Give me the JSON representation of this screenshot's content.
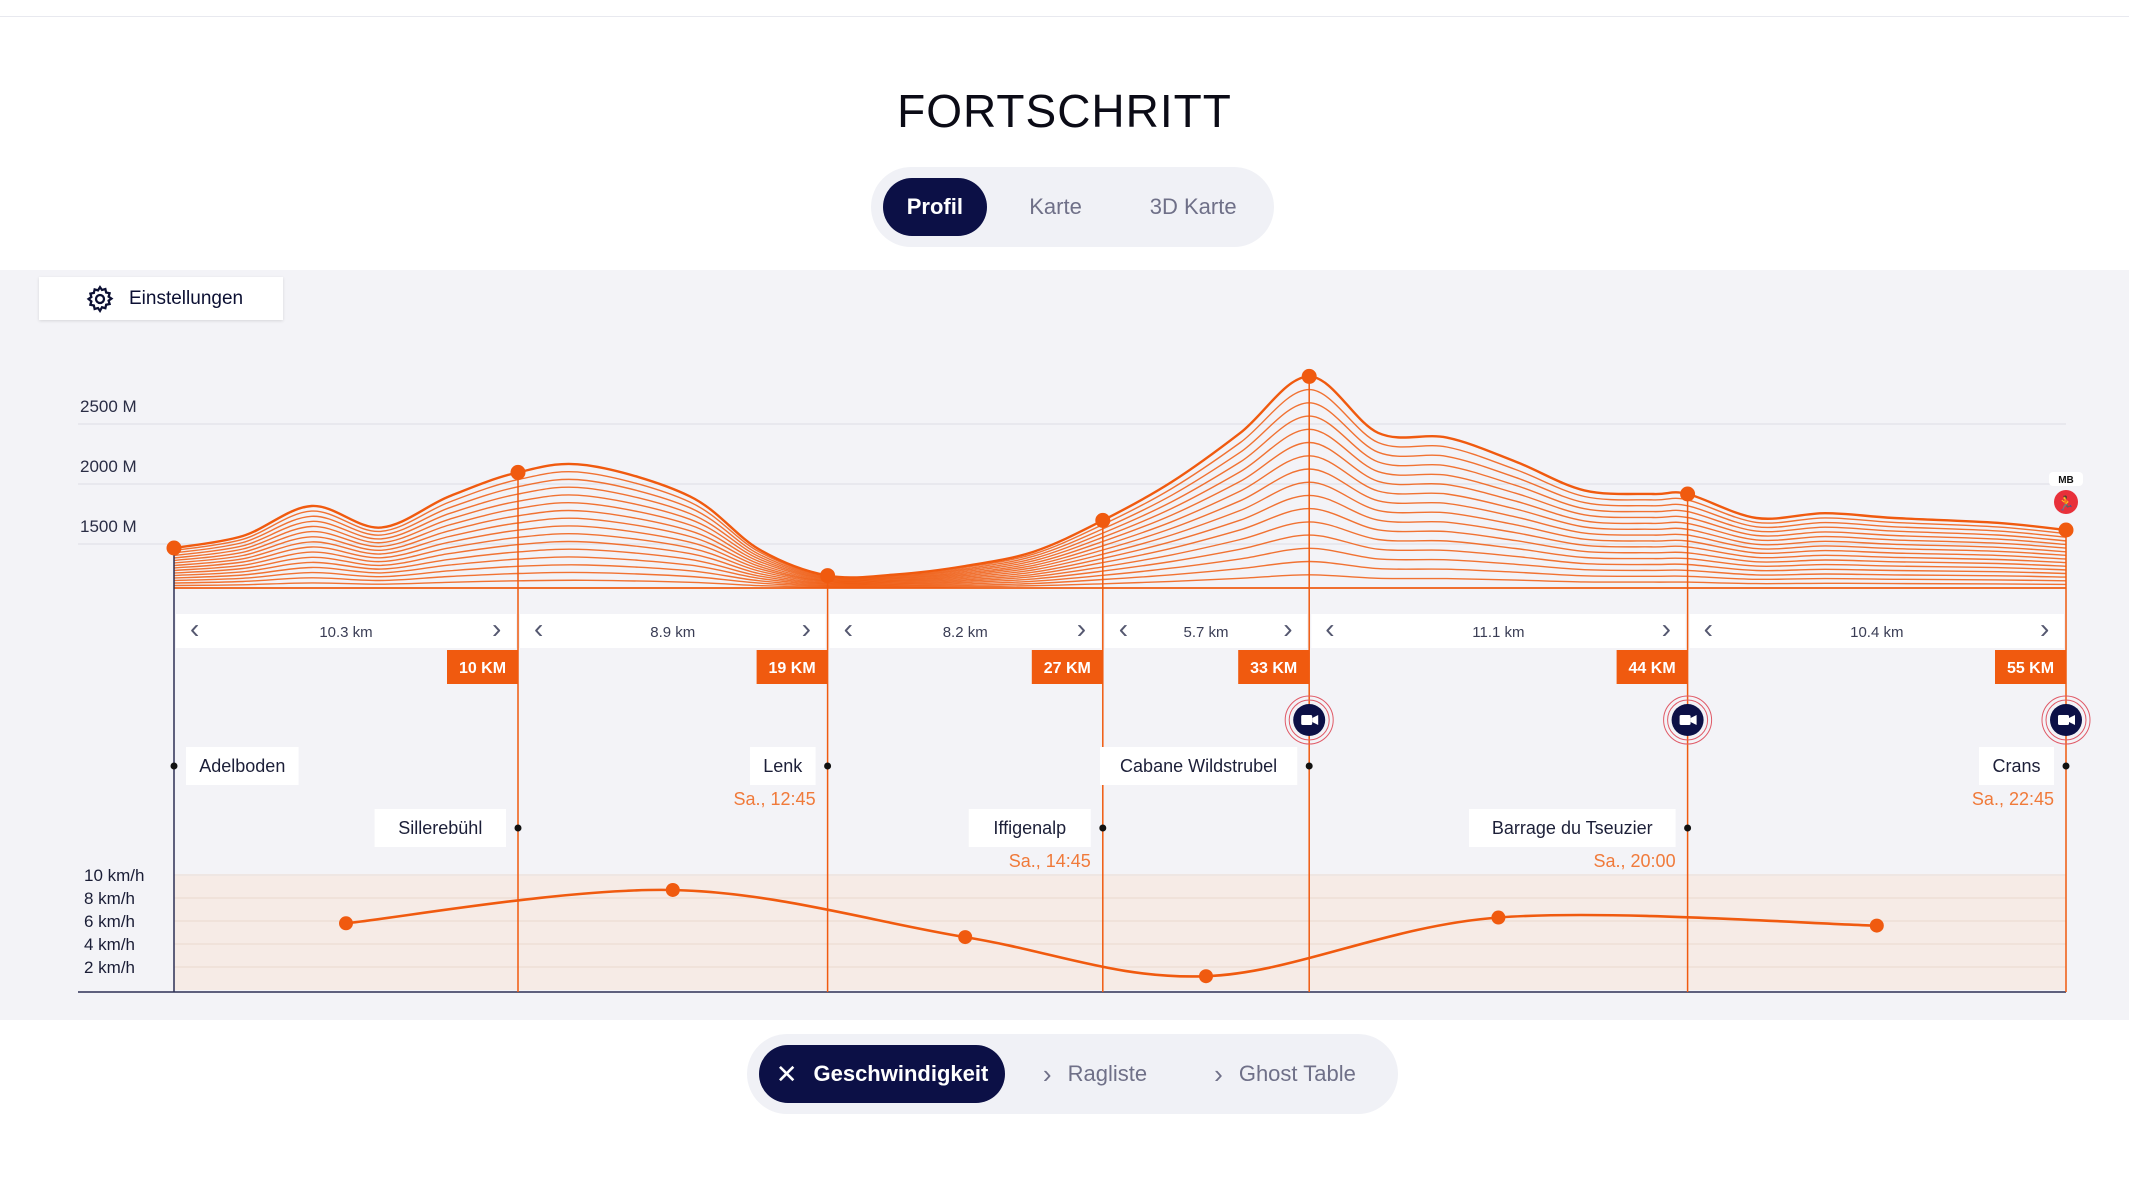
{
  "page": {
    "title": "FORTSCHRITT",
    "view_tabs": [
      {
        "label": "Profil",
        "active": true
      },
      {
        "label": "Karte",
        "active": false
      },
      {
        "label": "3D Karte",
        "active": false
      }
    ],
    "settings_label": "Einstellungen",
    "bottom_tabs": [
      {
        "label": "Geschwindigkeit",
        "active": true,
        "icon": "close-icon"
      },
      {
        "label": "Ragliste",
        "active": false,
        "icon": "chevron-right-icon"
      },
      {
        "label": "Ghost Table",
        "active": false,
        "icon": "chevron-right-icon"
      }
    ],
    "runner_badge": "MB"
  },
  "colors": {
    "accent": "#f05a0f",
    "navy": "#0c1046",
    "panel_bg": "#f3f3f7",
    "speed_band": "#f6ebe6"
  },
  "chart_data": {
    "type": "line",
    "title": "",
    "elevation_axis": {
      "labels": [
        "2500 M",
        "2000 M",
        "1500 M"
      ],
      "values": [
        2500,
        2000,
        1500
      ],
      "unit": "M"
    },
    "elevation_profile": {
      "x_km": [
        0,
        2,
        4,
        6,
        8,
        10,
        12,
        15,
        17,
        19,
        21,
        23,
        25,
        27,
        29,
        31,
        33,
        35,
        37,
        39,
        41,
        43,
        44,
        46,
        48,
        50,
        53,
        55
      ],
      "y_m": [
        1350,
        1450,
        1700,
        1520,
        1780,
        1980,
        2040,
        1780,
        1340,
        1120,
        1130,
        1200,
        1320,
        1580,
        1900,
        2310,
        2780,
        2310,
        2270,
        2070,
        1830,
        1800,
        1800,
        1600,
        1640,
        1600,
        1560,
        1500
      ]
    },
    "checkpoints": [
      {
        "km": 0,
        "name": "Adelboden",
        "time": "",
        "elevation": 1350,
        "label_row": 1,
        "camera": false
      },
      {
        "km": 10,
        "name": "Sillerebühl",
        "time": "",
        "elevation": 1980,
        "label_row": 2,
        "camera": false
      },
      {
        "km": 19,
        "name": "Lenk",
        "time": "Sa., 12:45",
        "elevation": 1120,
        "label_row": 1,
        "camera": false
      },
      {
        "km": 27,
        "name": "Iffigenalp",
        "time": "Sa., 14:45",
        "elevation": 1580,
        "label_row": 2,
        "camera": false
      },
      {
        "km": 33,
        "name": "Cabane Wildstrubel",
        "time": "",
        "elevation": 2780,
        "label_row": 1,
        "camera": true
      },
      {
        "km": 44,
        "name": "Barrage du Tseuzier",
        "time": "Sa., 20:00",
        "elevation": 1800,
        "label_row": 2,
        "camera": true
      },
      {
        "km": 55,
        "name": "Crans",
        "time": "Sa., 22:45",
        "elevation": 1500,
        "label_row": 1,
        "camera": true
      }
    ],
    "km_markers": [
      "10 KM",
      "19 KM",
      "27 KM",
      "33 KM",
      "44 KM",
      "55 KM"
    ],
    "segments": [
      "10.3 km",
      "8.9 km",
      "8.2 km",
      "5.7 km",
      "11.1 km",
      "10.4 km"
    ],
    "speed": {
      "axis_labels": [
        "10 km/h",
        "8 km/h",
        "6 km/h",
        "4 km/h",
        "2 km/h"
      ],
      "axis_values": [
        10,
        8,
        6,
        4,
        2
      ],
      "x_km": [
        5,
        14.5,
        23,
        30,
        38.5,
        49.5
      ],
      "y_kmh": [
        5.8,
        8.7,
        4.6,
        1.2,
        6.3,
        5.6
      ]
    }
  }
}
